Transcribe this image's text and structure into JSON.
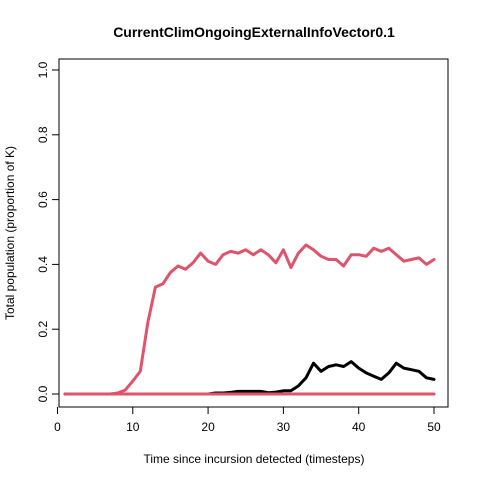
{
  "chart_data": {
    "type": "line",
    "title": "CurrentClimOngoingExternalInfoVector0.1",
    "xlabel": "Time since incursion detected (timesteps)",
    "ylabel": "Total population (proportion of K)",
    "xlim": [
      1,
      50
    ],
    "ylim": [
      0,
      1
    ],
    "xticks": [
      0,
      10,
      20,
      30,
      40,
      50
    ],
    "yticks": [
      0.0,
      0.2,
      0.4,
      0.6,
      0.8,
      1.0
    ],
    "ytick_labels": [
      "0.0",
      "0.2",
      "0.4",
      "0.6",
      "0.8",
      "1.0"
    ],
    "grid": false,
    "x": [
      1,
      2,
      3,
      4,
      5,
      6,
      7,
      8,
      9,
      10,
      11,
      12,
      13,
      14,
      15,
      16,
      17,
      18,
      19,
      20,
      21,
      22,
      23,
      24,
      25,
      26,
      27,
      28,
      29,
      30,
      31,
      32,
      33,
      34,
      35,
      36,
      37,
      38,
      39,
      40,
      41,
      42,
      43,
      44,
      45,
      46,
      47,
      48,
      49,
      50
    ],
    "series": [
      {
        "color": "#DF536B",
        "values": [
          0,
          0,
          0,
          0,
          0,
          0,
          0,
          0.003,
          0.012,
          0.04,
          0.07,
          0.22,
          0.33,
          0.34,
          0.375,
          0.395,
          0.385,
          0.405,
          0.435,
          0.41,
          0.4,
          0.43,
          0.44,
          0.435,
          0.445,
          0.43,
          0.445,
          0.43,
          0.405,
          0.445,
          0.39,
          0.435,
          0.46,
          0.445,
          0.425,
          0.415,
          0.415,
          0.395,
          0.43,
          0.43,
          0.425,
          0.45,
          0.44,
          0.45,
          0.43,
          0.41,
          0.415,
          0.42,
          0.4,
          0.415
        ]
      },
      {
        "color": "#000000",
        "values": [
          0,
          0,
          0,
          0,
          0,
          0,
          0,
          0,
          0,
          0,
          0,
          0,
          0,
          0,
          0,
          0,
          0,
          0,
          0,
          0,
          0.003,
          0.003,
          0.005,
          0.008,
          0.008,
          0.008,
          0.008,
          0.004,
          0.006,
          0.01,
          0.01,
          0.025,
          0.05,
          0.095,
          0.07,
          0.085,
          0.09,
          0.085,
          0.1,
          0.08,
          0.065,
          0.055,
          0.045,
          0.065,
          0.095,
          0.08,
          0.075,
          0.07,
          0.05,
          0.045
        ]
      },
      {
        "color": "#DF536B",
        "values": [
          0,
          0,
          0,
          0,
          0,
          0,
          0,
          0,
          0,
          0,
          0,
          0,
          0,
          0,
          0,
          0,
          0,
          0,
          0,
          0,
          0,
          0,
          0,
          0,
          0,
          0,
          0,
          0,
          0,
          0,
          0,
          0,
          0,
          0,
          0,
          0,
          0,
          0,
          0,
          0,
          0,
          0,
          0,
          0,
          0,
          0,
          0,
          0,
          0,
          0
        ]
      }
    ]
  }
}
